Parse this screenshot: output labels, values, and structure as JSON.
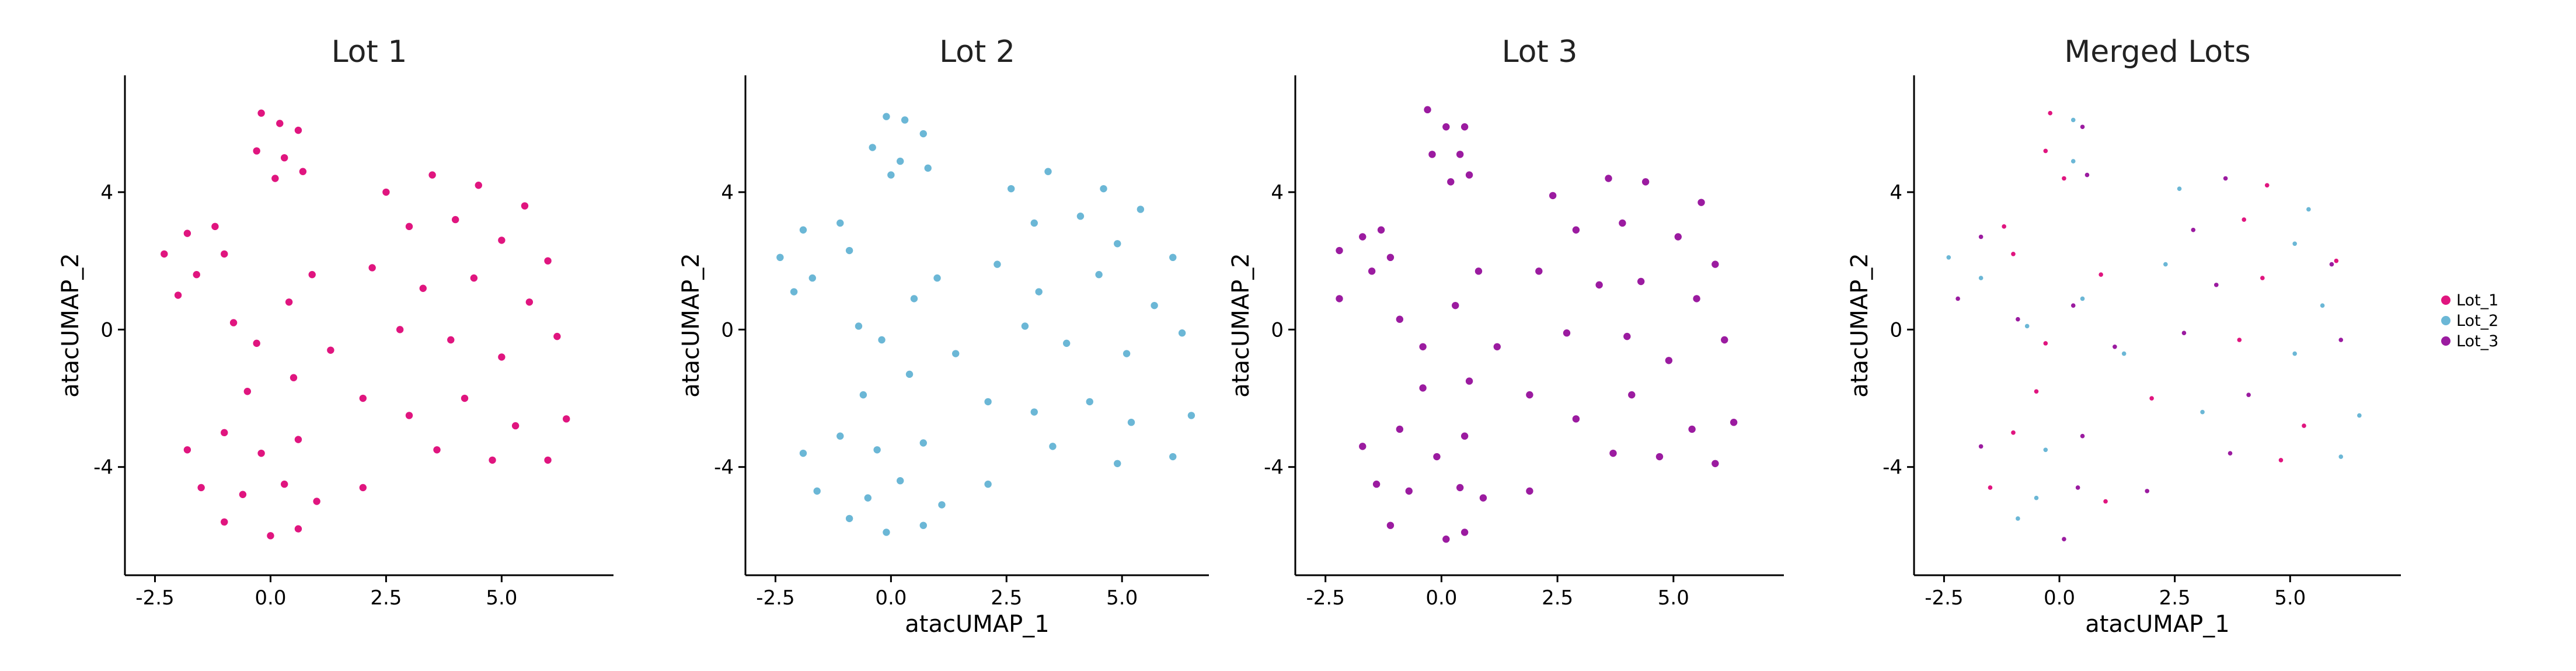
{
  "chart_data": [
    {
      "type": "scatter",
      "title": "Lot 1",
      "ylabel": "atacUMAP_2",
      "xlim": [
        -3.15,
        7.42
      ],
      "ylim": [
        -7.15,
        7.4
      ],
      "xticks": [
        -2.5,
        {
          "value": 0,
          "label": "0.0"
        },
        2.5,
        {
          "value": 5,
          "label": "5.0"
        }
      ],
      "yticks": [
        -4,
        0,
        4
      ],
      "series": [
        {
          "color": "#e0157f",
          "x": [
            -0.2,
            0.2,
            0.6,
            -0.3,
            0.3,
            0.7,
            0.1,
            -2.3,
            -1.8,
            -1.2,
            -1.6,
            -2.0,
            -1.0,
            -0.8,
            -0.3,
            0.4,
            0.9,
            1.3,
            0.5,
            -0.5,
            2.5,
            3.5,
            4.5,
            5.5,
            3.0,
            4.0,
            5.0,
            6.0,
            2.2,
            3.3,
            4.4,
            5.6,
            2.8,
            3.9,
            5.0,
            6.2,
            2.0,
            3.0,
            4.2,
            5.3,
            6.4,
            3.6,
            4.8,
            6.0,
            -1.8,
            -1.0,
            -0.2,
            0.6,
            -1.5,
            -0.6,
            0.3,
            1.0,
            -1.0,
            0.0,
            0.6,
            2.0
          ],
          "y": [
            6.3,
            6.0,
            5.8,
            5.2,
            5.0,
            4.6,
            4.4,
            2.2,
            2.8,
            3.0,
            1.6,
            1.0,
            2.2,
            0.2,
            -0.4,
            0.8,
            1.6,
            -0.6,
            -1.4,
            -1.8,
            4.0,
            4.5,
            4.2,
            3.6,
            3.0,
            3.2,
            2.6,
            2.0,
            1.8,
            1.2,
            1.5,
            0.8,
            0.0,
            -0.3,
            -0.8,
            -0.2,
            -2.0,
            -2.5,
            -2.0,
            -2.8,
            -2.6,
            -3.5,
            -3.8,
            -3.8,
            -3.5,
            -3.0,
            -3.6,
            -3.2,
            -4.6,
            -4.8,
            -4.5,
            -5.0,
            -5.6,
            -6.0,
            -5.8,
            -4.6
          ]
        }
      ]
    },
    {
      "type": "scatter",
      "title": "Lot 2",
      "xlabel": "atacUMAP_1",
      "ylabel": "atacUMAP_2",
      "xlim": [
        -3.15,
        6.88
      ],
      "ylim": [
        -7.15,
        7.4
      ],
      "xticks": [
        -2.5,
        {
          "value": 0,
          "label": "0.0"
        },
        2.5,
        {
          "value": 5,
          "label": "5.0"
        }
      ],
      "yticks": [
        -4,
        0,
        4
      ],
      "series": [
        {
          "color": "#6bb7d6",
          "x": [
            -0.1,
            0.3,
            0.7,
            -0.4,
            0.2,
            0.8,
            0.0,
            -2.4,
            -1.9,
            -1.1,
            -1.7,
            -2.1,
            -0.9,
            -0.7,
            -0.2,
            0.5,
            1.0,
            1.4,
            0.4,
            -0.6,
            2.6,
            3.4,
            4.6,
            5.4,
            3.1,
            4.1,
            4.9,
            6.1,
            2.3,
            3.2,
            4.5,
            5.7,
            2.9,
            3.8,
            5.1,
            6.3,
            2.1,
            3.1,
            4.3,
            5.2,
            6.5,
            3.5,
            4.9,
            6.1,
            -1.9,
            -1.1,
            -0.3,
            0.7,
            -1.6,
            -0.5,
            0.2,
            1.1,
            -0.9,
            -0.1,
            0.7,
            2.1
          ],
          "y": [
            6.2,
            6.1,
            5.7,
            5.3,
            4.9,
            4.7,
            4.5,
            2.1,
            2.9,
            3.1,
            1.5,
            1.1,
            2.3,
            0.1,
            -0.3,
            0.9,
            1.5,
            -0.7,
            -1.3,
            -1.9,
            4.1,
            4.6,
            4.1,
            3.5,
            3.1,
            3.3,
            2.5,
            2.1,
            1.9,
            1.1,
            1.6,
            0.7,
            0.1,
            -0.4,
            -0.7,
            -0.1,
            -2.1,
            -2.4,
            -2.1,
            -2.7,
            -2.5,
            -3.4,
            -3.9,
            -3.7,
            -3.6,
            -3.1,
            -3.5,
            -3.3,
            -4.7,
            -4.9,
            -4.4,
            -5.1,
            -5.5,
            -5.9,
            -5.7,
            -4.5
          ]
        }
      ]
    },
    {
      "type": "scatter",
      "title": "Lot 3",
      "ylabel": "atacUMAP_2",
      "xlim": [
        -3.15,
        7.38
      ],
      "ylim": [
        -7.15,
        7.4
      ],
      "xticks": [
        -2.5,
        {
          "value": 0,
          "label": "0.0"
        },
        2.5,
        {
          "value": 5,
          "label": "5.0"
        }
      ],
      "yticks": [
        -4,
        0,
        4
      ],
      "series": [
        {
          "color": "#9b1ba0",
          "x": [
            -0.3,
            0.1,
            0.5,
            -0.2,
            0.4,
            0.6,
            0.2,
            -2.2,
            -1.7,
            -1.3,
            -1.5,
            -2.2,
            -1.1,
            -0.9,
            -0.4,
            0.3,
            0.8,
            1.2,
            0.6,
            -0.4,
            2.4,
            3.6,
            4.4,
            5.6,
            2.9,
            3.9,
            5.1,
            5.9,
            2.1,
            3.4,
            4.3,
            5.5,
            2.7,
            4.0,
            4.9,
            6.1,
            1.9,
            2.9,
            4.1,
            5.4,
            6.3,
            3.7,
            4.7,
            5.9,
            -1.7,
            -0.9,
            -0.1,
            0.5,
            -1.4,
            -0.7,
            0.4,
            0.9,
            -1.1,
            0.1,
            0.5,
            1.9
          ],
          "y": [
            6.4,
            5.9,
            5.9,
            5.1,
            5.1,
            4.5,
            4.3,
            2.3,
            2.7,
            2.9,
            1.7,
            0.9,
            2.1,
            0.3,
            -0.5,
            0.7,
            1.7,
            -0.5,
            -1.5,
            -1.7,
            3.9,
            4.4,
            4.3,
            3.7,
            2.9,
            3.1,
            2.7,
            1.9,
            1.7,
            1.3,
            1.4,
            0.9,
            -0.1,
            -0.2,
            -0.9,
            -0.3,
            -1.9,
            -2.6,
            -1.9,
            -2.9,
            -2.7,
            -3.6,
            -3.7,
            -3.9,
            -3.4,
            -2.9,
            -3.7,
            -3.1,
            -4.5,
            -4.7,
            -4.6,
            -4.9,
            -5.7,
            -6.1,
            -5.9,
            -4.7
          ]
        }
      ]
    },
    {
      "type": "scatter",
      "title": "Merged Lots",
      "xlabel": "atacUMAP_1",
      "ylabel": "atacUMAP_2",
      "xlim": [
        -3.15,
        7.4
      ],
      "ylim": [
        -7.15,
        7.4
      ],
      "xticks": [
        -2.5,
        {
          "value": 0,
          "label": "0.0"
        },
        2.5,
        {
          "value": 5,
          "label": "5.0"
        }
      ],
      "yticks": [
        -4,
        0,
        4
      ],
      "legend": "right",
      "series": [
        {
          "name": "Lot_1",
          "color": "#e0157f",
          "x": [
            -0.2,
            -0.3,
            0.1,
            -1.2,
            -1.0,
            -0.3,
            0.9,
            -0.5,
            4.5,
            4.0,
            6.0,
            4.4,
            3.9,
            2.0,
            5.3,
            4.8,
            -1.0,
            -1.5,
            1.0
          ],
          "y": [
            6.3,
            5.2,
            4.4,
            3.0,
            2.2,
            -0.4,
            1.6,
            -1.8,
            4.2,
            3.2,
            2.0,
            1.5,
            -0.3,
            -2.0,
            -2.8,
            -3.8,
            -3.0,
            -4.6,
            -5.0
          ]
        },
        {
          "name": "Lot_2",
          "color": "#6bb7d6",
          "x": [
            0.3,
            0.3,
            -2.4,
            -1.7,
            -0.7,
            0.5,
            1.4,
            2.6,
            5.4,
            5.1,
            2.3,
            5.7,
            5.1,
            3.1,
            6.5,
            6.1,
            -0.3,
            -0.5,
            -0.9
          ],
          "y": [
            6.1,
            4.9,
            2.1,
            1.5,
            0.1,
            0.9,
            -0.7,
            4.1,
            3.5,
            2.5,
            1.9,
            0.7,
            -0.7,
            -2.4,
            -2.5,
            -3.7,
            -3.5,
            -4.9,
            -5.5
          ]
        },
        {
          "name": "Lot_3",
          "color": "#9b1ba0",
          "x": [
            0.5,
            0.6,
            -1.7,
            -2.2,
            -0.9,
            0.3,
            1.2,
            3.6,
            2.9,
            5.9,
            3.4,
            2.7,
            6.1,
            4.1,
            3.7,
            -1.7,
            0.5,
            0.4,
            0.1,
            1.9
          ],
          "y": [
            5.9,
            4.5,
            2.7,
            0.9,
            0.3,
            0.7,
            -0.5,
            4.4,
            2.9,
            1.9,
            1.3,
            -0.1,
            -0.3,
            -1.9,
            -3.6,
            -3.4,
            -3.1,
            -4.6,
            -6.1,
            -4.7
          ]
        }
      ]
    }
  ]
}
